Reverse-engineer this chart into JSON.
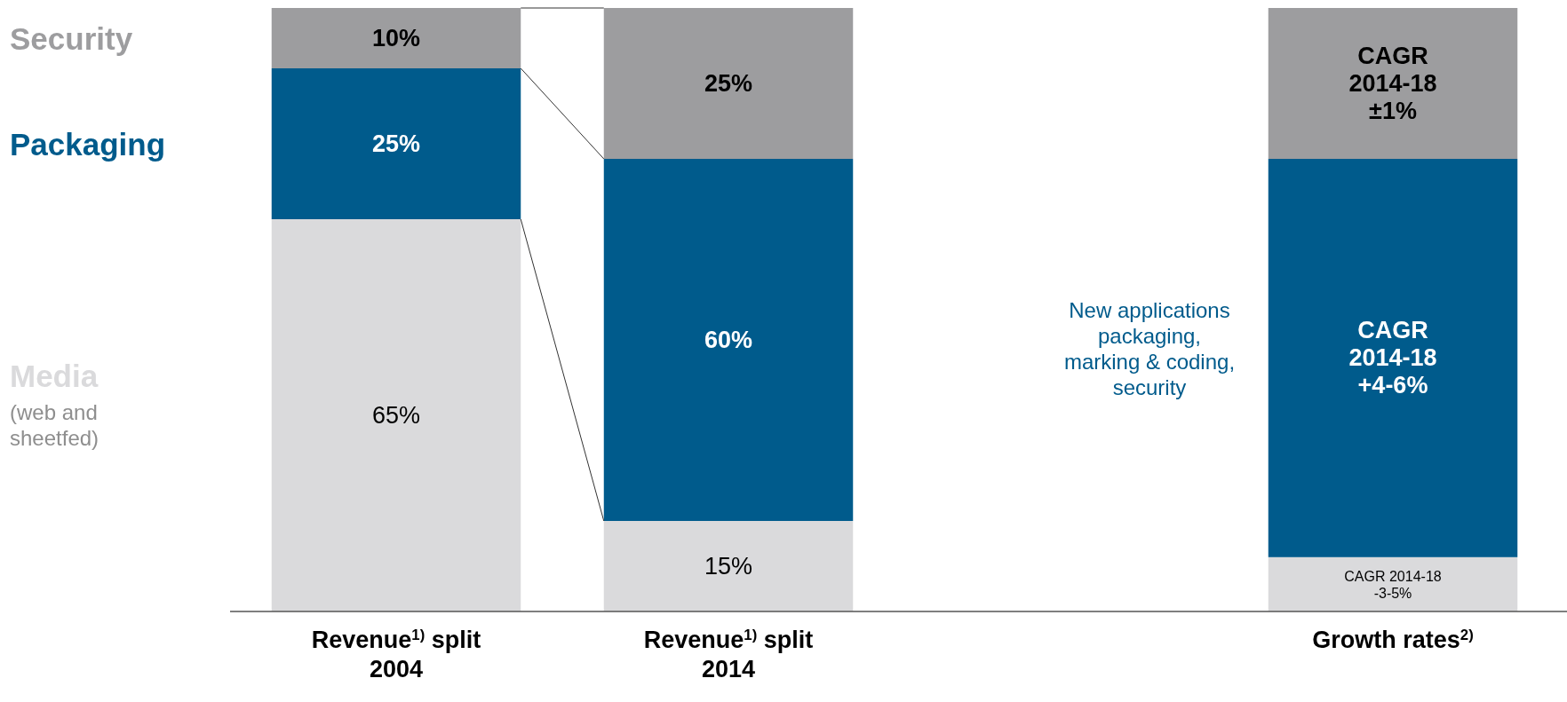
{
  "chart_data": {
    "type": "bar",
    "stacked": true,
    "categories": [
      "Revenue$^{1)}$ split 2004",
      "Revenue$^{1)}$ split 2014",
      null,
      "Growth rates$^{2)}$"
    ],
    "series": [
      {
        "name": "Media",
        "color": "#dadadc",
        "values": [
          65,
          15,
          null,
          9
        ],
        "value_labels": [
          "65%",
          "15%",
          null,
          null
        ]
      },
      {
        "name": "Packaging",
        "color": "#005b8c",
        "values": [
          25,
          60,
          null,
          66
        ],
        "value_labels": [
          "25%",
          "60%",
          null,
          null
        ]
      },
      {
        "name": "Security",
        "color": "#9d9d9f",
        "values": [
          10,
          25,
          null,
          25
        ],
        "value_labels": [
          "10%",
          "25%",
          null,
          null
        ]
      }
    ],
    "ylim": [
      0,
      100
    ],
    "tick_labels": "x",
    "legend": "left",
    "annotations": [
      "(web and sheetfed)",
      "New applications packaging, marking & coding, security",
      "CAGR 2014-18\n-3-5%",
      "CAGR\n2014-18\n+4-6%",
      "CAGR\n2014-18\n±1%"
    ]
  }
}
